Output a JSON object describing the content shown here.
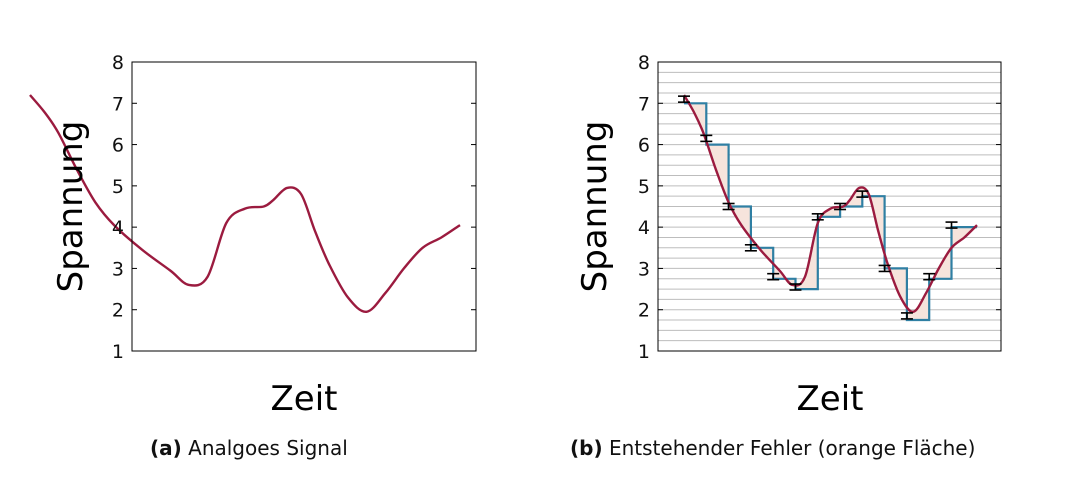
{
  "chart_data": [
    {
      "type": "line",
      "caption_tag": "(a)",
      "caption": "Analgoes Signal",
      "xlabel": "Zeit",
      "ylabel": "Spannung",
      "ylim": [
        1,
        8
      ],
      "yticks": [
        "1",
        "2",
        "3",
        "4",
        "5",
        "6",
        "7",
        "8"
      ],
      "grid": false,
      "x": [
        0,
        3,
        6,
        10,
        14,
        18,
        24,
        30,
        34,
        38,
        42,
        46,
        50,
        52,
        55,
        58,
        61,
        64,
        68,
        72,
        76,
        80,
        84,
        88,
        92
      ],
      "series": [
        {
          "values": [
            7.2,
            6.8,
            6.3,
            5.4,
            4.6,
            4.05,
            3.45,
            2.95,
            2.6,
            2.8,
            4.1,
            4.45,
            4.5,
            4.65,
            4.95,
            4.8,
            3.9,
            3.1,
            2.3,
            1.95,
            2.4,
            3.0,
            3.5,
            3.75,
            4.05
          ]
        }
      ],
      "colors": {
        "signal": "#9b1b3f"
      }
    },
    {
      "type": "line",
      "caption_tag": "(b)",
      "caption": "Entstehender Fehler (orange Fläche)",
      "xlabel": "Zeit",
      "ylabel": "Spannung",
      "ylim": [
        1,
        8
      ],
      "yticks": [
        "1",
        "2",
        "3",
        "4",
        "5",
        "6",
        "7",
        "8"
      ],
      "grid": true,
      "x": [
        0,
        3,
        6,
        10,
        14,
        18,
        24,
        30,
        34,
        38,
        42,
        46,
        50,
        52,
        55,
        58,
        61,
        64,
        68,
        72,
        76,
        80,
        84,
        88,
        92
      ],
      "series": [
        {
          "values": [
            7.2,
            6.8,
            6.3,
            5.4,
            4.6,
            4.05,
            3.45,
            2.95,
            2.6,
            2.8,
            4.1,
            4.45,
            4.5,
            4.65,
            4.95,
            4.8,
            3.9,
            3.1,
            2.3,
            1.95,
            2.4,
            3.0,
            3.5,
            3.75,
            4.05
          ]
        }
      ],
      "samples": {
        "x": [
          0,
          7,
          14,
          21,
          28,
          35,
          42,
          49,
          56,
          63,
          70,
          77,
          84
        ],
        "y": [
          7.1,
          6.15,
          4.5,
          3.5,
          2.8,
          2.55,
          4.25,
          4.5,
          4.8,
          3.0,
          1.85,
          2.8,
          4.05
        ]
      },
      "held_levels": [
        7.0,
        6.0,
        4.5,
        3.5,
        2.75,
        2.5,
        4.25,
        4.5,
        4.75,
        3.0,
        1.75,
        2.75,
        4.0
      ],
      "colors": {
        "signal": "#9b1b3f",
        "steps": "#2f7fa3",
        "error_fill": "#f6e4dc",
        "grid": "#bdbdbd",
        "marker": "#000000"
      }
    }
  ]
}
